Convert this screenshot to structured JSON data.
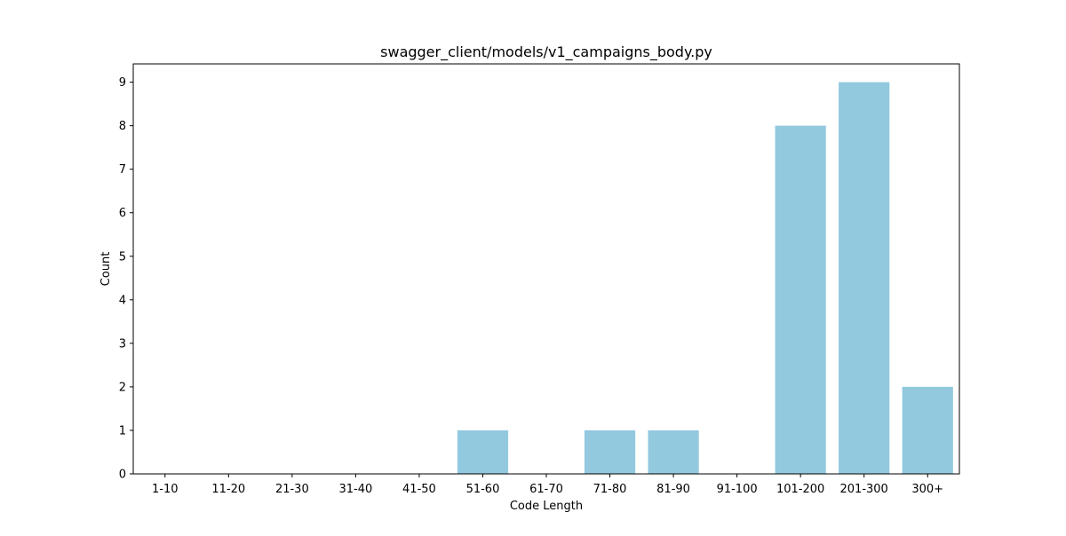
{
  "chart_data": {
    "type": "bar",
    "title": "swagger_client/models/v1_campaigns_body.py",
    "xlabel": "Code Length",
    "ylabel": "Count",
    "categories": [
      "1-10",
      "11-20",
      "21-30",
      "31-40",
      "41-50",
      "51-60",
      "61-70",
      "71-80",
      "81-90",
      "91-100",
      "101-200",
      "201-300",
      "300+"
    ],
    "values": [
      0,
      0,
      0,
      0,
      0,
      1,
      0,
      1,
      1,
      0,
      8,
      9,
      2
    ],
    "ylim": [
      0,
      9.42
    ],
    "yticks": [
      "0",
      "1",
      "2",
      "3",
      "4",
      "5",
      "6",
      "7",
      "8",
      "9"
    ],
    "bar_color": "#92c9df",
    "grid": false,
    "legend": "none"
  }
}
